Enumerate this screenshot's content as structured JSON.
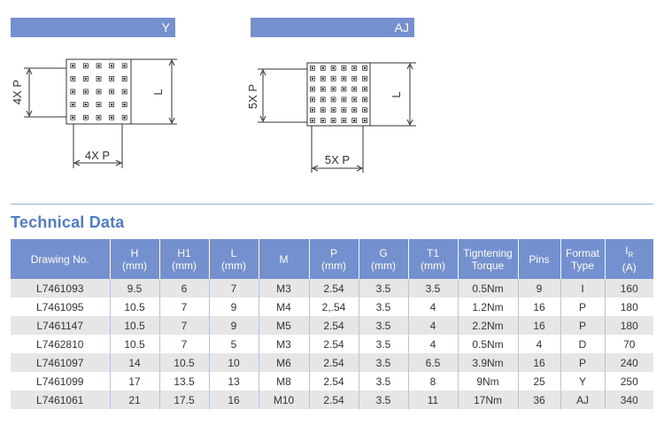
{
  "diagrams": {
    "y": {
      "label": "Y",
      "dim_left": "4X P",
      "dim_bottom": "4X P",
      "dim_right": "L"
    },
    "aj": {
      "label": "AJ",
      "dim_left": "5X P",
      "dim_bottom": "5X P",
      "dim_right": "L"
    }
  },
  "section_title": "Technical Data",
  "table": {
    "headers": [
      {
        "line1": "Drawing No.",
        "line2": ""
      },
      {
        "line1": "H",
        "line2": "(mm)"
      },
      {
        "line1": "H1",
        "line2": "(mm)"
      },
      {
        "line1": "L",
        "line2": "(mm)"
      },
      {
        "line1": "M",
        "line2": ""
      },
      {
        "line1": "P",
        "line2": "(mm)"
      },
      {
        "line1": "G",
        "line2": "(mm)"
      },
      {
        "line1": "T1",
        "line2": "(mm)"
      },
      {
        "line1": "Tigntening",
        "line2": "Torque"
      },
      {
        "line1": "Pins",
        "line2": ""
      },
      {
        "line1": "Format",
        "line2": "Type"
      },
      {
        "line1": "I",
        "line1_sub": "R",
        "line2": "(A)"
      }
    ],
    "rows": [
      [
        "L7461093",
        "9.5",
        "6",
        "7",
        "M3",
        "2.54",
        "3.5",
        "3.5",
        "0.5Nm",
        "9",
        "I",
        "160"
      ],
      [
        "L7461095",
        "10.5",
        "7",
        "9",
        "M4",
        "2,.54",
        "3.5",
        "4",
        "1.2Nm",
        "16",
        "P",
        "180"
      ],
      [
        "L7461147",
        "10.5",
        "7",
        "9",
        "M5",
        "2.54",
        "3.5",
        "4",
        "2.2Nm",
        "16",
        "P",
        "180"
      ],
      [
        "L7462810",
        "10.5",
        "7",
        "5",
        "M3",
        "2.54",
        "3.5",
        "4",
        "0.5Nm",
        "4",
        "D",
        "70"
      ],
      [
        "L7461097",
        "14",
        "10.5",
        "10",
        "M6",
        "2.54",
        "3.5",
        "6.5",
        "3.9Nm",
        "16",
        "P",
        "240"
      ],
      [
        "L7461099",
        "17",
        "13.5",
        "13",
        "M8",
        "2.54",
        "3.5",
        "8",
        "9Nm",
        "25",
        "Y",
        "250"
      ],
      [
        "L7461061",
        "21",
        "17.5",
        "16",
        "M10",
        "2.54",
        "3.5",
        "11",
        "17Nm",
        "36",
        "AJ",
        "340"
      ]
    ]
  },
  "colors": {
    "header_bg": "#7490cf",
    "title": "#4f7ec8",
    "row_alt": "#e6e6e6"
  }
}
